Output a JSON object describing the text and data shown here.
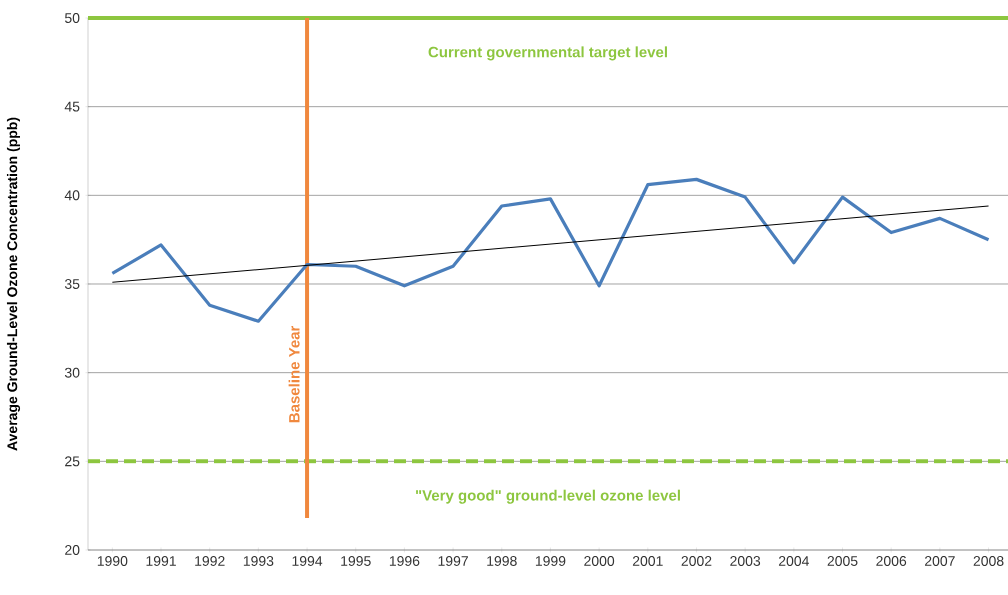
{
  "chart_data": {
    "type": "line",
    "ylabel": "Average Ground-Level Ozone Concentration (ppb)",
    "x": [
      1990,
      1991,
      1992,
      1993,
      1994,
      1995,
      1996,
      1997,
      1998,
      1999,
      2000,
      2001,
      2002,
      2003,
      2004,
      2005,
      2006,
      2007,
      2008
    ],
    "series": [
      {
        "color": "#4a7ebb",
        "values": [
          35.6,
          37.2,
          33.8,
          32.9,
          36.1,
          36.0,
          34.9,
          36.0,
          39.4,
          39.8,
          34.9,
          40.6,
          40.9,
          39.9,
          36.2,
          39.9,
          37.9,
          38.7,
          37.5
        ]
      },
      {
        "type": "line",
        "color": "#000000",
        "x": [
          1990,
          2008
        ],
        "values": [
          35.1,
          39.4
        ]
      }
    ],
    "xlim": [
      1989.5,
      2008.4
    ],
    "ylim": [
      20,
      50
    ],
    "xticks": [
      1990,
      1991,
      1992,
      1993,
      1994,
      1995,
      1996,
      1997,
      1998,
      1999,
      2000,
      2001,
      2002,
      2003,
      2004,
      2005,
      2006,
      2007,
      2008
    ],
    "yticks": [
      20,
      25,
      30,
      35,
      40,
      45,
      50
    ],
    "grid": "y",
    "marker": "none",
    "line_style": "solid",
    "ref_lines": [
      {
        "axis": "y",
        "value": 50,
        "label": "Current governmental  target level",
        "color": "#8dc63f",
        "line_style": "solid"
      },
      {
        "axis": "y",
        "value": 25,
        "label": "\"Very good\" ground-level ozone level",
        "color": "#8dc63f",
        "line_style": "dashed"
      },
      {
        "axis": "x",
        "value": 1994,
        "label": "Baseline Year",
        "color": "#f0883e",
        "line_style": "solid"
      }
    ]
  }
}
